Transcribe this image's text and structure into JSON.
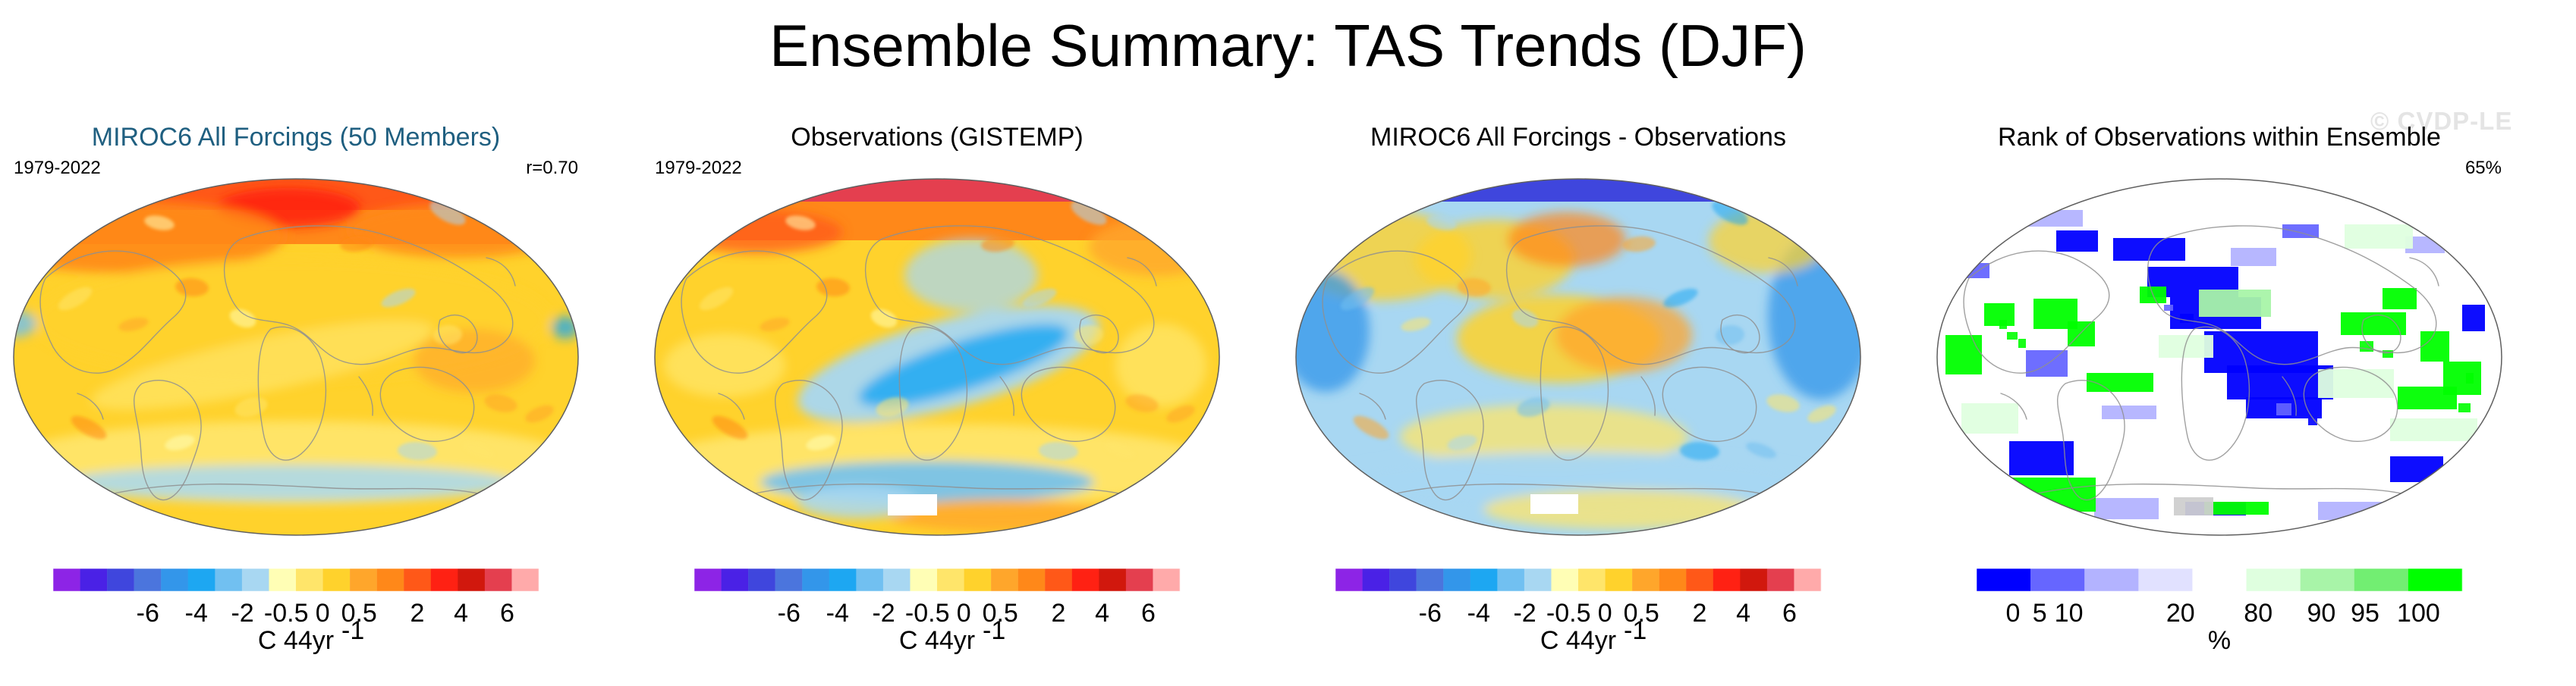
{
  "title": "Ensemble Summary: TAS Trends (DJF)",
  "watermark": "© CVDP-LE",
  "colors": {
    "title_blue": "#1f5f80",
    "land_line": "#8f8f8f",
    "outline": "#5f5f5f"
  },
  "chart_data": [
    {
      "type": "heatmap",
      "title": "MIROC6 All Forcings (50 Members)",
      "period": "1979-2022",
      "stat": "r=0.70",
      "palette": "temperature",
      "variant": "model",
      "units_main": "C 44yr",
      "units_exp": "-1",
      "colorbar": {
        "labels": [
          "-6",
          "-4",
          "-2",
          "-0.5",
          "0",
          "0.5",
          "2",
          "4",
          "6"
        ],
        "colors": [
          "#8d24e6",
          "#4a21e6",
          "#3f46dd",
          "#4b75dd",
          "#3396ea",
          "#1da7f2",
          "#71c0f1",
          "#a8d7f2",
          "#fffeb5",
          "#ffe56a",
          "#ffd22c",
          "#ffa62b",
          "#ff8819",
          "#ff5818",
          "#ff2113",
          "#d1180d",
          "#e43f4f",
          "#ffaaaa"
        ]
      }
    },
    {
      "type": "heatmap",
      "title": "Observations (GISTEMP)",
      "period": "1979-2022",
      "stat": "",
      "palette": "temperature",
      "variant": "obs",
      "units_main": "C 44yr",
      "units_exp": "-1",
      "colorbar": {
        "labels": [
          "-6",
          "-4",
          "-2",
          "-0.5",
          "0",
          "0.5",
          "2",
          "4",
          "6"
        ],
        "colors": [
          "#8d24e6",
          "#4a21e6",
          "#3f46dd",
          "#4b75dd",
          "#3396ea",
          "#1da7f2",
          "#71c0f1",
          "#a8d7f2",
          "#fffeb5",
          "#ffe56a",
          "#ffd22c",
          "#ffa62b",
          "#ff8819",
          "#ff5818",
          "#ff2113",
          "#d1180d",
          "#e43f4f",
          "#ffaaaa"
        ]
      }
    },
    {
      "type": "heatmap",
      "title": "MIROC6 All Forcings - Observations",
      "period": "",
      "stat": "",
      "palette": "temperature",
      "variant": "diff",
      "units_main": "C 44yr",
      "units_exp": "-1",
      "colorbar": {
        "labels": [
          "-6",
          "-4",
          "-2",
          "-0.5",
          "0",
          "0.5",
          "2",
          "4",
          "6"
        ],
        "colors": [
          "#8d24e6",
          "#4a21e6",
          "#3f46dd",
          "#4b75dd",
          "#3396ea",
          "#1da7f2",
          "#71c0f1",
          "#a8d7f2",
          "#fffeb5",
          "#ffe56a",
          "#ffd22c",
          "#ffa62b",
          "#ff8819",
          "#ff5818",
          "#ff2113",
          "#d1180d",
          "#e43f4f",
          "#ffaaaa"
        ]
      }
    },
    {
      "type": "heatmap",
      "title": "Rank of Observations within Ensemble",
      "period": "",
      "stat": "65%",
      "palette": "rank",
      "variant": "rank",
      "units_main": "%",
      "units_exp": "",
      "colorbar": {
        "labels": [
          "0",
          "5",
          "10",
          "20",
          "80",
          "90",
          "95",
          "100"
        ],
        "colors": [
          "#0000ff",
          "#6666ff",
          "#b3b3ff",
          "#e1e1ff",
          "#ffffff",
          "#dfffdf",
          "#a8f4a8",
          "#72ee72",
          "#00ff00"
        ]
      }
    }
  ]
}
